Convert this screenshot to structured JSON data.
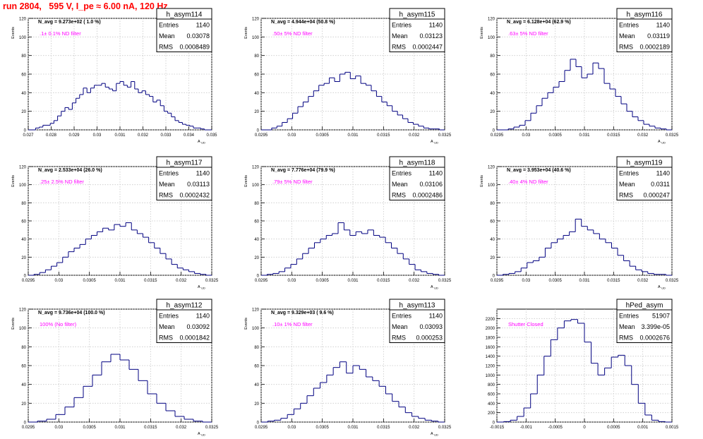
{
  "header": {
    "run_title": "run 2804,   595 V, I_pe ≈ 6.00 nA, 120 Hz"
  },
  "chart_data": [
    {
      "type": "histogram",
      "title": "h_asym114",
      "ylabel": "Events",
      "xlabel": "A_UD",
      "xlim": [
        0.027,
        0.035
      ],
      "ylim": [
        0,
        120
      ],
      "xticks": [
        "0.027",
        "0.028",
        "0.029",
        "0.03",
        "0.031",
        "0.032",
        "0.033",
        "0.034",
        "0.035"
      ],
      "yticks": [
        "0",
        "20",
        "40",
        "60",
        "80",
        "100",
        "120"
      ],
      "navg_label": "N_avg = 9.273e+02 ( 1.0 %)",
      "annotation": ".1± 0.1% ND filter",
      "stats": {
        "entries_label": "Entries",
        "entries": "1140",
        "mean_label": "Mean",
        "mean": "0.03078",
        "rms_label": "RMS",
        "rms": "0.0008489"
      },
      "color": "#000080",
      "series": [
        {
          "values": [
            0,
            0,
            2,
            3,
            5,
            5,
            7,
            10,
            15,
            20,
            24,
            22,
            29,
            34,
            38,
            45,
            40,
            45,
            48,
            48,
            50,
            46,
            44,
            42,
            50,
            52,
            48,
            46,
            52,
            44,
            40,
            42,
            38,
            36,
            30,
            32,
            26,
            20,
            18,
            14,
            10,
            8,
            6,
            5,
            4,
            2,
            2,
            1,
            0,
            0
          ]
        }
      ]
    },
    {
      "type": "histogram",
      "title": "h_asym115",
      "ylabel": "Events",
      "xlabel": "A_UD",
      "xlim": [
        0.0295,
        0.0325
      ],
      "ylim": [
        0,
        120
      ],
      "xticks": [
        "0.0295",
        "0.03",
        "0.0305",
        "0.031",
        "0.0315",
        "0.032",
        "0.0325"
      ],
      "yticks": [
        "0",
        "20",
        "40",
        "60",
        "80",
        "100",
        "120"
      ],
      "navg_label": "N_avg = 4.944e+04 (50.8 %)",
      "annotation": ".50± 5% ND filter",
      "stats": {
        "entries_label": "Entries",
        "entries": "1140",
        "mean_label": "Mean",
        "mean": "0.03123",
        "rms_label": "RMS",
        "rms": "0.0002447"
      },
      "color": "#000080",
      "series": [
        {
          "values": [
            0,
            0,
            2,
            4,
            8,
            12,
            18,
            25,
            30,
            36,
            42,
            48,
            50,
            56,
            52,
            60,
            62,
            55,
            58,
            50,
            48,
            42,
            36,
            30,
            26,
            20,
            16,
            12,
            8,
            6,
            4,
            2,
            1,
            1,
            0
          ]
        }
      ]
    },
    {
      "type": "histogram",
      "title": "h_asym116",
      "ylabel": "Events",
      "xlabel": "A_UD",
      "xlim": [
        0.0295,
        0.0325
      ],
      "ylim": [
        0,
        120
      ],
      "xticks": [
        "0.0295",
        "0.03",
        "0.0305",
        "0.031",
        "0.0315",
        "0.032",
        "0.0325"
      ],
      "yticks": [
        "0",
        "20",
        "40",
        "60",
        "80",
        "100",
        "120"
      ],
      "navg_label": "N_avg = 6.128e+04 (62.9 %)",
      "annotation": ".63± 5% ND filter",
      "stats": {
        "entries_label": "Entries",
        "entries": "1140",
        "mean_label": "Mean",
        "mean": "0.03119",
        "rms_label": "RMS",
        "rms": "0.0002189"
      },
      "color": "#000080",
      "series": [
        {
          "values": [
            0,
            0,
            1,
            3,
            5,
            10,
            18,
            26,
            34,
            40,
            46,
            52,
            64,
            76,
            68,
            56,
            60,
            72,
            66,
            50,
            44,
            36,
            28,
            20,
            14,
            10,
            6,
            4,
            2,
            1,
            0
          ]
        }
      ]
    },
    {
      "type": "histogram",
      "title": "h_asym117",
      "ylabel": "Events",
      "xlabel": "A_UD",
      "xlim": [
        0.0295,
        0.0325
      ],
      "ylim": [
        0,
        120
      ],
      "xticks": [
        "0.0295",
        "0.03",
        "0.0305",
        "0.031",
        "0.0315",
        "0.032",
        "0.0325"
      ],
      "yticks": [
        "0",
        "20",
        "40",
        "60",
        "80",
        "100",
        "120"
      ],
      "navg_label": "N_avg = 2.533e+04 (26.0 %)",
      "annotation": ".25± 2.5% ND filter",
      "stats": {
        "entries_label": "Entries",
        "entries": "1140",
        "mean_label": "Mean",
        "mean": "0.03113",
        "rms_label": "RMS",
        "rms": "0.0002432"
      },
      "color": "#000080",
      "series": [
        {
          "values": [
            0,
            1,
            3,
            6,
            10,
            14,
            20,
            26,
            30,
            34,
            40,
            44,
            48,
            52,
            50,
            56,
            54,
            58,
            50,
            46,
            42,
            36,
            30,
            24,
            18,
            12,
            8,
            6,
            4,
            2,
            1,
            0
          ]
        }
      ]
    },
    {
      "type": "histogram",
      "title": "h_asym118",
      "ylabel": "Events",
      "xlabel": "A_UD",
      "xlim": [
        0.0295,
        0.0325
      ],
      "ylim": [
        0,
        120
      ],
      "xticks": [
        "0.0295",
        "0.03",
        "0.0305",
        "0.031",
        "0.0315",
        "0.032",
        "0.0325"
      ],
      "yticks": [
        "0",
        "20",
        "40",
        "60",
        "80",
        "100",
        "120"
      ],
      "navg_label": "N_avg = 7.776e+04 (79.9 %)",
      "annotation": ".79± 5% ND filter",
      "stats": {
        "entries_label": "Entries",
        "entries": "1140",
        "mean_label": "Mean",
        "mean": "0.03106",
        "rms_label": "RMS",
        "rms": "0.0002486"
      },
      "color": "#000080",
      "series": [
        {
          "values": [
            0,
            1,
            2,
            4,
            8,
            12,
            18,
            24,
            30,
            36,
            40,
            44,
            46,
            58,
            50,
            44,
            48,
            46,
            50,
            44,
            42,
            36,
            30,
            24,
            18,
            12,
            6,
            4,
            2,
            1,
            0
          ]
        }
      ]
    },
    {
      "type": "histogram",
      "title": "h_asym119",
      "ylabel": "Events",
      "xlabel": "A_UD",
      "xlim": [
        0.0295,
        0.0325
      ],
      "ylim": [
        0,
        120
      ],
      "xticks": [
        "0.0295",
        "0.03",
        "0.0305",
        "0.031",
        "0.0315",
        "0.032",
        "0.0325"
      ],
      "yticks": [
        "0",
        "20",
        "40",
        "60",
        "80",
        "100",
        "120"
      ],
      "navg_label": "N_avg = 3.953e+04 (40.6 %)",
      "annotation": ".40± 4% ND filter",
      "stats": {
        "entries_label": "Entries",
        "entries": "1140",
        "mean_label": "Mean",
        "mean": "0.0311",
        "rms_label": "RMS",
        "rms": "0.000247"
      },
      "color": "#000080",
      "series": [
        {
          "values": [
            0,
            1,
            2,
            4,
            8,
            14,
            16,
            20,
            30,
            36,
            40,
            44,
            48,
            62,
            54,
            50,
            46,
            40,
            36,
            30,
            22,
            16,
            10,
            6,
            4,
            2,
            1,
            1,
            0
          ]
        }
      ]
    },
    {
      "type": "histogram",
      "title": "h_asym112",
      "ylabel": "Events",
      "xlabel": "A_UD",
      "xlim": [
        0.0295,
        0.0325
      ],
      "ylim": [
        0,
        120
      ],
      "xticks": [
        "0.0295",
        "0.03",
        "0.0305",
        "0.031",
        "0.0315",
        "0.032",
        "0.0325"
      ],
      "yticks": [
        "0",
        "20",
        "40",
        "60",
        "80",
        "100",
        "120"
      ],
      "navg_label": "N_avg = 9.736e+04 (100.0 %)",
      "annotation": "100% (No filter)",
      "stats": {
        "entries_label": "Entries",
        "entries": "1140",
        "mean_label": "Mean",
        "mean": "0.03092",
        "rms_label": "RMS",
        "rms": "0.0001842"
      },
      "color": "#000080",
      "series": [
        {
          "values": [
            0,
            1,
            3,
            8,
            16,
            26,
            38,
            50,
            64,
            72,
            66,
            56,
            44,
            30,
            20,
            12,
            6,
            3,
            1,
            0
          ]
        }
      ]
    },
    {
      "type": "histogram",
      "title": "h_asym113",
      "ylabel": "Events",
      "xlabel": "A_UD",
      "xlim": [
        0.0295,
        0.0325
      ],
      "ylim": [
        0,
        120
      ],
      "xticks": [
        "0.0295",
        "0.03",
        "0.0305",
        "0.031",
        "0.0315",
        "0.032",
        "0.0325"
      ],
      "yticks": [
        "0",
        "20",
        "40",
        "60",
        "80",
        "100",
        "120"
      ],
      "navg_label": "N_avg = 9.329e+03 ( 9.6 %)",
      "annotation": ".10± 1% ND filter",
      "stats": {
        "entries_label": "Entries",
        "entries": "1140",
        "mean_label": "Mean",
        "mean": "0.03093",
        "rms_label": "RMS",
        "rms": "0.000253"
      },
      "color": "#000080",
      "series": [
        {
          "values": [
            0,
            1,
            2,
            4,
            8,
            14,
            20,
            28,
            36,
            42,
            50,
            58,
            64,
            52,
            60,
            56,
            48,
            44,
            38,
            30,
            22,
            16,
            10,
            6,
            4,
            2,
            1,
            0
          ]
        }
      ]
    },
    {
      "type": "histogram",
      "title": "hPed_asym",
      "ylabel": "",
      "xlabel": "",
      "xlim": [
        -0.0015,
        0.0015
      ],
      "ylim": [
        0,
        2400
      ],
      "xticks": [
        "-0.0015",
        "-0.001",
        "-0.0005",
        "0",
        "0.0005",
        "0.001",
        "0.0015"
      ],
      "yticks": [
        "0",
        "200",
        "400",
        "600",
        "800",
        "1000",
        "1200",
        "1400",
        "1600",
        "1800",
        "2000",
        "2200"
      ],
      "navg_label": "",
      "annotation": "Shutter Closed",
      "stats": {
        "entries_label": "Entries",
        "entries": "51907",
        "mean_label": "Mean",
        "mean": "3.399e-05",
        "rms_label": "RMS",
        "rms": "0.0002676"
      },
      "color": "#000080",
      "series": [
        {
          "values": [
            0,
            10,
            40,
            120,
            300,
            600,
            1000,
            1400,
            1750,
            2000,
            2150,
            2180,
            2100,
            1700,
            1250,
            1000,
            1150,
            1380,
            1420,
            1200,
            800,
            400,
            150,
            40,
            10,
            0
          ]
        }
      ]
    }
  ]
}
